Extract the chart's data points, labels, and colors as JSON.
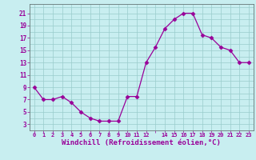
{
  "x": [
    0,
    1,
    2,
    3,
    4,
    5,
    6,
    7,
    8,
    9,
    10,
    11,
    12,
    13,
    14,
    15,
    16,
    17,
    18,
    19,
    20,
    21,
    22,
    23
  ],
  "y": [
    9,
    7,
    7,
    7.5,
    6.5,
    5,
    4,
    3.5,
    3.5,
    3.5,
    7.5,
    7.5,
    13,
    15.5,
    18.5,
    20,
    21,
    21,
    17.5,
    17,
    15.5,
    15,
    13,
    13
  ],
  "line_color": "#990099",
  "marker": "D",
  "marker_size": 2.5,
  "bg_color": "#c8eef0",
  "grid_color": "#99cccc",
  "xlabel": "Windchill (Refroidissement éolien,°C)",
  "xlabel_fontsize": 6.5,
  "xlim": [
    -0.5,
    23.5
  ],
  "ylim": [
    2.5,
    22.5
  ],
  "ytick_odd_labels": [
    3,
    5,
    7,
    9,
    11,
    13,
    15,
    17,
    19,
    21
  ],
  "xtick_labels": [
    "0",
    "1",
    "2",
    "3",
    "4",
    "5",
    "6",
    "7",
    "8",
    "9",
    "10",
    "11",
    "12",
    "",
    "14",
    "15",
    "16",
    "17",
    "18",
    "19",
    "20",
    "21",
    "22",
    "23"
  ]
}
